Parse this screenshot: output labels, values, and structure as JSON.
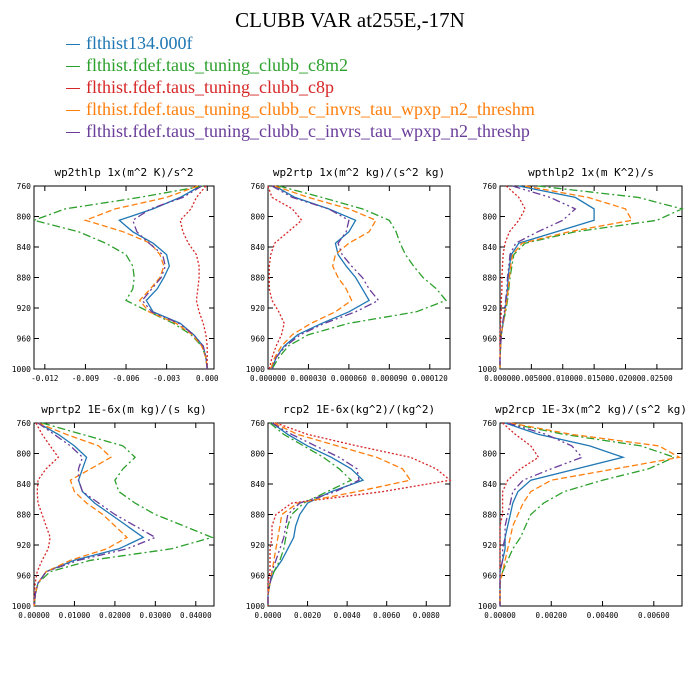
{
  "title": "CLUBB VAR at255E,-17N",
  "colors": {
    "c0": "#1f77b4",
    "c1": "#2ca02c",
    "c2": "#d62728",
    "c3": "#ff7f0e",
    "c4": "#6a3d9a"
  },
  "legend": [
    {
      "label": "flthist134.000f",
      "color": "#1f77b4"
    },
    {
      "label": "flthist.fdef.taus_tuning_clubb_c8m2",
      "color": "#2ca02c"
    },
    {
      "label": "flthist.fdef.taus_tuning_clubb_c8p",
      "color": "#d62728"
    },
    {
      "label": "flthist.fdef.taus_tuning_clubb_c_invrs_tau_wpxp_n2_threshm",
      "color": "#ff7f0e"
    },
    {
      "label": "flthist.fdef.taus_tuning_clubb_c_invrs_tau_wpxp_n2_threshp",
      "color": "#6a3d9a"
    }
  ],
  "chart_data": [
    {
      "type": "line",
      "title": "wp2thlp  1x(m^2 K)/s^2",
      "xlim": [
        -0.0128,
        0.0005
      ],
      "ylim": [
        760,
        1000
      ],
      "xticks": [
        -0.012,
        -0.009,
        -0.006,
        -0.003,
        0.0
      ],
      "xtick_labels": [
        "-0.012",
        "-0.009",
        "-0.006",
        "-0.003",
        "0.000"
      ],
      "yticks": [
        760,
        800,
        840,
        880,
        920,
        960,
        1000
      ],
      "levels": [
        760,
        775,
        790,
        805,
        820,
        835,
        850,
        865,
        880,
        895,
        910,
        925,
        940,
        955,
        970,
        985,
        1000
      ],
      "series": [
        {
          "values": [
            -0.0005,
            -0.002,
            -0.004,
            -0.0065,
            -0.0055,
            -0.004,
            -0.003,
            -0.0028,
            -0.0032,
            -0.0037,
            -0.0045,
            -0.004,
            -0.002,
            -0.001,
            -0.0003,
            -0.0001,
            0
          ]
        },
        {
          "values": [
            -0.0003,
            -0.005,
            -0.0105,
            -0.0128,
            -0.0095,
            -0.0075,
            -0.006,
            -0.0055,
            -0.0054,
            -0.0055,
            -0.006,
            -0.0043,
            -0.0025,
            -0.0012,
            -0.0004,
            -0.0001,
            0
          ]
        },
        {
          "values": [
            -0.0001,
            -0.0008,
            -0.0012,
            -0.002,
            -0.0018,
            -0.0014,
            -0.0008,
            -0.0006,
            -0.0006,
            -0.0007,
            -0.0008,
            -0.0006,
            -0.0003,
            -0.0001,
            0,
            0,
            0
          ]
        },
        {
          "values": [
            -0.0007,
            -0.003,
            -0.0068,
            -0.009,
            -0.0062,
            -0.0042,
            -0.0035,
            -0.0032,
            -0.0035,
            -0.0042,
            -0.005,
            -0.0043,
            -0.0023,
            -0.0011,
            -0.0004,
            -0.0001,
            0
          ]
        },
        {
          "values": [
            -0.0004,
            -0.0018,
            -0.0042,
            -0.0055,
            -0.0052,
            -0.0043,
            -0.0033,
            -0.0031,
            -0.0034,
            -0.0041,
            -0.0048,
            -0.0041,
            -0.0021,
            -0.001,
            -0.0003,
            -0.0001,
            0
          ]
        }
      ]
    },
    {
      "type": "line",
      "title": "wp2rtp  1x(m^2 kg)/(s^2 kg)",
      "xlim": [
        0,
        0.000135
      ],
      "ylim": [
        760,
        1000
      ],
      "xticks": [
        0,
        3e-05,
        6e-05,
        9e-05,
        0.00012
      ],
      "xtick_labels": [
        "0.000000",
        "0.000030",
        "0.000060",
        "0.000090",
        "0.000120"
      ],
      "yticks": [
        760,
        800,
        840,
        880,
        920,
        960,
        1000
      ],
      "levels": [
        760,
        775,
        790,
        805,
        820,
        835,
        850,
        865,
        880,
        895,
        910,
        925,
        940,
        955,
        970,
        985,
        1000
      ],
      "series": [
        {
          "values": [
            5e-06,
            2e-05,
            4.5e-05,
            6.5e-05,
            6e-05,
            5e-05,
            5.2e-05,
            5.8e-05,
            6.5e-05,
            7e-05,
            7.5e-05,
            6e-05,
            4e-05,
            2.2e-05,
            1.2e-05,
            6e-06,
            3e-06
          ]
        },
        {
          "values": [
            8e-06,
            4e-05,
            7e-05,
            9e-05,
            9.5e-05,
            9.8e-05,
            0.000102,
            0.000108,
            0.000115,
            0.000125,
            0.000132,
            0.00011,
            6e-05,
            3e-05,
            1.5e-05,
            8e-06,
            3e-06
          ]
        },
        {
          "values": [
            0,
            3e-06,
            1.8e-05,
            2.5e-05,
            1.5e-05,
            5e-06,
            2e-06,
            1e-06,
            1e-06,
            1e-06,
            3e-06,
            8e-06,
            1.2e-05,
            1e-05,
            6e-06,
            3e-06,
            1e-06
          ]
        },
        {
          "values": [
            5e-06,
            3e-05,
            6e-05,
            8e-05,
            7.5e-05,
            6e-05,
            5e-05,
            4.8e-05,
            5.2e-05,
            5.8e-05,
            6.2e-05,
            5e-05,
            3.2e-05,
            1.8e-05,
            1e-05,
            5e-06,
            2e-06
          ]
        },
        {
          "values": [
            3e-06,
            1.8e-05,
            4.5e-05,
            6e-05,
            5.8e-05,
            5.2e-05,
            5.5e-05,
            6.2e-05,
            7e-05,
            7.5e-05,
            8.2e-05,
            6.5e-05,
            4.2e-05,
            2.4e-05,
            1.3e-05,
            6e-06,
            3e-06
          ]
        }
      ]
    },
    {
      "type": "line",
      "title": "wpthlp2  1x(m K^2)/s",
      "xlim": [
        0,
        0.029
      ],
      "ylim": [
        760,
        1000
      ],
      "xticks": [
        0,
        0.005,
        0.01,
        0.015,
        0.02,
        0.025
      ],
      "xtick_labels": [
        "0.00000",
        "0.00500",
        "0.01000",
        "0.01500",
        "0.02000",
        "0.02500"
      ],
      "yticks": [
        760,
        800,
        840,
        880,
        920,
        960,
        1000
      ],
      "levels": [
        760,
        775,
        790,
        805,
        820,
        835,
        850,
        865,
        880,
        895,
        910,
        925,
        940,
        955,
        970,
        985,
        1000
      ],
      "series": [
        {
          "values": [
            0.003,
            0.012,
            0.015,
            0.015,
            0.009,
            0.003,
            0.0018,
            0.0015,
            0.0013,
            0.0012,
            0.001,
            0.0008,
            0.0005,
            0.0002,
            0.0001,
            0,
            0
          ]
        },
        {
          "values": [
            0.006,
            0.022,
            0.029,
            0.025,
            0.012,
            0.004,
            0.0022,
            0.0019,
            0.0016,
            0.0014,
            0.0012,
            0.0009,
            0.0005,
            0.0002,
            0.0001,
            0,
            0
          ]
        },
        {
          "values": [
            0.001,
            0.003,
            0.004,
            0.003,
            0.0015,
            0.0008,
            0.0005,
            0.0004,
            0.0003,
            0.0003,
            0.0002,
            0.0002,
            0.0001,
            0,
            0,
            0,
            0
          ]
        },
        {
          "values": [
            0.004,
            0.014,
            0.02,
            0.021,
            0.011,
            0.0035,
            0.002,
            0.0017,
            0.0015,
            0.0013,
            0.0011,
            0.0008,
            0.0005,
            0.0002,
            0.0001,
            0,
            0
          ]
        },
        {
          "values": [
            0.002,
            0.008,
            0.012,
            0.01,
            0.006,
            0.0025,
            0.0016,
            0.0014,
            0.0012,
            0.0011,
            0.0009,
            0.0007,
            0.0004,
            0.0002,
            0.0001,
            0,
            0
          ]
        }
      ]
    },
    {
      "type": "line",
      "title": "wprtp2  1E-6x(m kg)/(s kg)",
      "xlim": [
        0,
        0.0445
      ],
      "ylim": [
        760,
        1000
      ],
      "xticks": [
        0,
        0.01,
        0.02,
        0.03,
        0.04
      ],
      "xtick_labels": [
        "0.00000",
        "0.01000",
        "0.02000",
        "0.03000",
        "0.04000"
      ],
      "yticks": [
        760,
        800,
        840,
        880,
        920,
        960,
        1000
      ],
      "levels": [
        760,
        775,
        790,
        805,
        820,
        835,
        850,
        865,
        880,
        895,
        910,
        925,
        940,
        955,
        970,
        985,
        1000
      ],
      "series": [
        {
          "values": [
            0.001,
            0.006,
            0.01,
            0.013,
            0.012,
            0.011,
            0.012,
            0.015,
            0.019,
            0.023,
            0.027,
            0.021,
            0.01,
            0.003,
            0.001,
            0.0003,
            0.0001
          ]
        },
        {
          "values": [
            0.002,
            0.012,
            0.022,
            0.025,
            0.022,
            0.02,
            0.021,
            0.025,
            0.03,
            0.037,
            0.044,
            0.034,
            0.014,
            0.004,
            0.001,
            0.0003,
            0.0001
          ]
        },
        {
          "values": [
            0.0005,
            0.002,
            0.004,
            0.006,
            0.003,
            0.001,
            0.0008,
            0.001,
            0.002,
            0.003,
            0.004,
            0.0035,
            0.002,
            0.0008,
            0.0003,
            0.0001,
            0
          ]
        },
        {
          "values": [
            0.001,
            0.008,
            0.016,
            0.019,
            0.014,
            0.009,
            0.01,
            0.013,
            0.017,
            0.02,
            0.023,
            0.018,
            0.009,
            0.003,
            0.001,
            0.0003,
            0.0001
          ]
        },
        {
          "values": [
            0.001,
            0.005,
            0.009,
            0.012,
            0.011,
            0.011,
            0.012,
            0.016,
            0.02,
            0.025,
            0.03,
            0.023,
            0.011,
            0.003,
            0.001,
            0.0003,
            0.0001
          ]
        }
      ]
    },
    {
      "type": "line",
      "title": "rcp2  1E-6x(kg^2)/(kg^2)",
      "xlim": [
        0,
        0.0092
      ],
      "ylim": [
        760,
        1000
      ],
      "xticks": [
        0,
        0.002,
        0.004,
        0.006,
        0.008
      ],
      "xtick_labels": [
        "0.0000",
        "0.0020",
        "0.0040",
        "0.0060",
        "0.0080"
      ],
      "yticks": [
        760,
        800,
        840,
        880,
        920,
        960,
        1000
      ],
      "levels": [
        760,
        775,
        790,
        805,
        820,
        835,
        850,
        865,
        880,
        895,
        910,
        925,
        940,
        955,
        970,
        985,
        1000
      ],
      "series": [
        {
          "values": [
            0.0002,
            0.001,
            0.002,
            0.0032,
            0.0042,
            0.0048,
            0.0032,
            0.002,
            0.0016,
            0.0014,
            0.0013,
            0.001,
            0.0007,
            0.0003,
            0.0001,
            0,
            0
          ]
        },
        {
          "values": [
            0.0001,
            0.0008,
            0.0018,
            0.0028,
            0.0036,
            0.0042,
            0.003,
            0.0018,
            0.0012,
            0.001,
            0.0009,
            0.0008,
            0.0006,
            0.0003,
            0.0001,
            0,
            0
          ]
        },
        {
          "values": [
            0.0004,
            0.002,
            0.0045,
            0.0072,
            0.0085,
            0.0092,
            0.0058,
            0.0012,
            0.0004,
            0.0002,
            0.0002,
            0.0001,
            0.0001,
            0.0001,
            0,
            0,
            0
          ]
        },
        {
          "values": [
            0.0003,
            0.0015,
            0.0035,
            0.0055,
            0.0068,
            0.0072,
            0.0045,
            0.0015,
            0.0007,
            0.0006,
            0.0005,
            0.0004,
            0.0003,
            0.0002,
            0.0001,
            0,
            0
          ]
        },
        {
          "values": [
            0.0002,
            0.0012,
            0.0024,
            0.0036,
            0.0045,
            0.0046,
            0.0034,
            0.0016,
            0.001,
            0.0009,
            0.0008,
            0.0006,
            0.0004,
            0.0002,
            0.0001,
            0,
            0
          ]
        }
      ]
    },
    {
      "type": "line",
      "title": "wp2rcp  1E-3x(m^2 kg)/(s^2 kg)",
      "xlim": [
        0,
        0.0071
      ],
      "ylim": [
        760,
        1000
      ],
      "xticks": [
        0,
        0.002,
        0.004,
        0.006
      ],
      "xtick_labels": [
        "0.00000",
        "0.00200",
        "0.00400",
        "0.00600"
      ],
      "yticks": [
        760,
        800,
        840,
        880,
        920,
        960,
        1000
      ],
      "levels": [
        760,
        775,
        790,
        805,
        820,
        835,
        850,
        865,
        880,
        895,
        910,
        925,
        940,
        955,
        970,
        985,
        1000
      ],
      "series": [
        {
          "values": [
            0.0002,
            0.0015,
            0.0035,
            0.0048,
            0.003,
            0.0012,
            0.0007,
            0.0005,
            0.0004,
            0.0003,
            0.0002,
            0.0002,
            0.0001,
            0,
            0,
            0,
            0
          ]
        },
        {
          "values": [
            0.0003,
            0.0025,
            0.0055,
            0.0068,
            0.0058,
            0.004,
            0.0025,
            0.0017,
            0.0012,
            0.001,
            0.0008,
            0.0005,
            0.0003,
            0.0001,
            0,
            0,
            0
          ]
        },
        {
          "values": [
            0.0001,
            0.0006,
            0.0012,
            0.0015,
            0.0008,
            0.0003,
            0.0001,
            0.0001,
            0.0001,
            0,
            0,
            0,
            0,
            0,
            0,
            0,
            0
          ]
        },
        {
          "values": [
            0.0004,
            0.0028,
            0.0062,
            0.007,
            0.0045,
            0.002,
            0.0012,
            0.0009,
            0.0007,
            0.0005,
            0.0004,
            0.0003,
            0.0002,
            0.0001,
            0,
            0,
            0
          ]
        },
        {
          "values": [
            0.0003,
            0.0018,
            0.0028,
            0.0032,
            0.002,
            0.0009,
            0.0005,
            0.0004,
            0.0003,
            0.0002,
            0.0002,
            0.0001,
            0.0001,
            0,
            0,
            0,
            0
          ]
        }
      ]
    }
  ]
}
